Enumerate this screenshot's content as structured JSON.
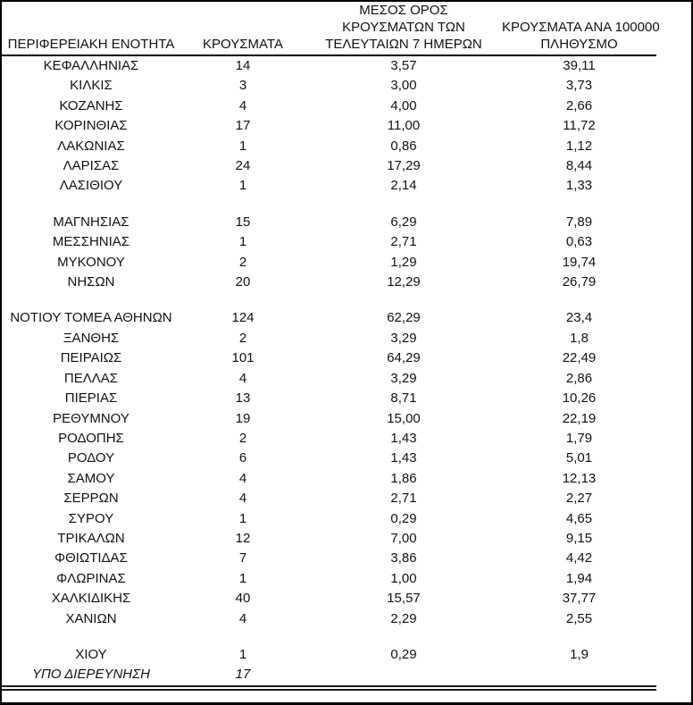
{
  "page": {
    "background_color": "#ffffff",
    "border_color": "#000000",
    "text_color": "#111111"
  },
  "table": {
    "headers": [
      {
        "lines": [
          "ΠΕΡΙΦΕΡΕΙΑΚΗ ΕΝΟΤΗΤΑ"
        ]
      },
      {
        "lines": [
          "ΚΡΟΥΣΜΑΤΑ"
        ]
      },
      {
        "lines": [
          "ΜΕΣΟΣ ΟΡΟΣ",
          "ΚΡΟΥΣΜΑΤΩΝ ΤΩΝ",
          "ΤΕΛΕΥΤΑΙΩΝ 7 ΗΜΕΡΩΝ"
        ]
      },
      {
        "lines": [
          "ΚΡΟΥΣΜΑΤΑ ΑΝΑ 100000",
          "ΠΛΗΘΥΣΜΟ"
        ]
      }
    ],
    "rows": [
      {
        "region": "ΚΕΦΑΛΛΗΝΙΑΣ",
        "cases": "14",
        "avg7": "3,57",
        "per100k": "39,11"
      },
      {
        "region": "ΚΙΛΚΙΣ",
        "cases": "3",
        "avg7": "3,00",
        "per100k": "3,73"
      },
      {
        "region": "ΚΟΖΑΝΗΣ",
        "cases": "4",
        "avg7": "4,00",
        "per100k": "2,66"
      },
      {
        "region": "ΚΟΡΙΝΘΙΑΣ",
        "cases": "17",
        "avg7": "11,00",
        "per100k": "11,72"
      },
      {
        "region": "ΛΑΚΩΝΙΑΣ",
        "cases": "1",
        "avg7": "0,86",
        "per100k": "1,12"
      },
      {
        "region": "ΛΑΡΙΣΑΣ",
        "cases": "24",
        "avg7": "17,29",
        "per100k": "8,44"
      },
      {
        "region": "ΛΑΣΙΘΙΟΥ",
        "cases": "1",
        "avg7": "2,14",
        "per100k": "1,33"
      },
      {
        "spacer": true
      },
      {
        "region": "ΜΑΓΝΗΣΙΑΣ",
        "cases": "15",
        "avg7": "6,29",
        "per100k": "7,89"
      },
      {
        "region": "ΜΕΣΣΗΝΙΑΣ",
        "cases": "1",
        "avg7": "2,71",
        "per100k": "0,63"
      },
      {
        "region": "ΜΥΚΟΝΟΥ",
        "cases": "2",
        "avg7": "1,29",
        "per100k": "19,74"
      },
      {
        "region": "ΝΗΣΩΝ",
        "cases": "20",
        "avg7": "12,29",
        "per100k": "26,79"
      },
      {
        "spacer": true
      },
      {
        "region": "ΝΟΤΙΟΥ ΤΟΜΕΑ ΑΘΗΝΩΝ",
        "cases": "124",
        "avg7": "62,29",
        "per100k": "23,4"
      },
      {
        "region": "ΞΑΝΘΗΣ",
        "cases": "2",
        "avg7": "3,29",
        "per100k": "1,8"
      },
      {
        "region": "ΠΕΙΡΑΙΩΣ",
        "cases": "101",
        "avg7": "64,29",
        "per100k": "22,49"
      },
      {
        "region": "ΠΕΛΛΑΣ",
        "cases": "4",
        "avg7": "3,29",
        "per100k": "2,86"
      },
      {
        "region": "ΠΙΕΡΙΑΣ",
        "cases": "13",
        "avg7": "8,71",
        "per100k": "10,26"
      },
      {
        "region": "ΡΕΘΥΜΝΟΥ",
        "cases": "19",
        "avg7": "15,00",
        "per100k": "22,19"
      },
      {
        "region": "ΡΟΔΟΠΗΣ",
        "cases": "2",
        "avg7": "1,43",
        "per100k": "1,79"
      },
      {
        "region": "ΡΟΔΟΥ",
        "cases": "6",
        "avg7": "1,43",
        "per100k": "5,01"
      },
      {
        "region": "ΣΑΜΟΥ",
        "cases": "4",
        "avg7": "1,86",
        "per100k": "12,13"
      },
      {
        "region": "ΣΕΡΡΩΝ",
        "cases": "4",
        "avg7": "2,71",
        "per100k": "2,27"
      },
      {
        "region": "ΣΥΡΟΥ",
        "cases": "1",
        "avg7": "0,29",
        "per100k": "4,65"
      },
      {
        "region": "ΤΡΙΚΑΛΩΝ",
        "cases": "12",
        "avg7": "7,00",
        "per100k": "9,15"
      },
      {
        "region": "ΦΘΙΩΤΙΔΑΣ",
        "cases": "7",
        "avg7": "3,86",
        "per100k": "4,42"
      },
      {
        "region": "ΦΛΩΡΙΝΑΣ",
        "cases": "1",
        "avg7": "1,00",
        "per100k": "1,94"
      },
      {
        "region": "ΧΑΛΚΙΔΙΚΗΣ",
        "cases": "40",
        "avg7": "15,57",
        "per100k": "37,77"
      },
      {
        "region": "ΧΑΝΙΩΝ",
        "cases": "4",
        "avg7": "2,29",
        "per100k": "2,55"
      },
      {
        "spacer": true
      },
      {
        "region": "ΧΙΟΥ",
        "cases": "1",
        "avg7": "0,29",
        "per100k": "1,9"
      },
      {
        "region": "ΥΠΟ ΔΙΕΡΕΥΝΗΣΗ",
        "cases": "17",
        "avg7": "",
        "per100k": "",
        "italic": true
      }
    ]
  }
}
